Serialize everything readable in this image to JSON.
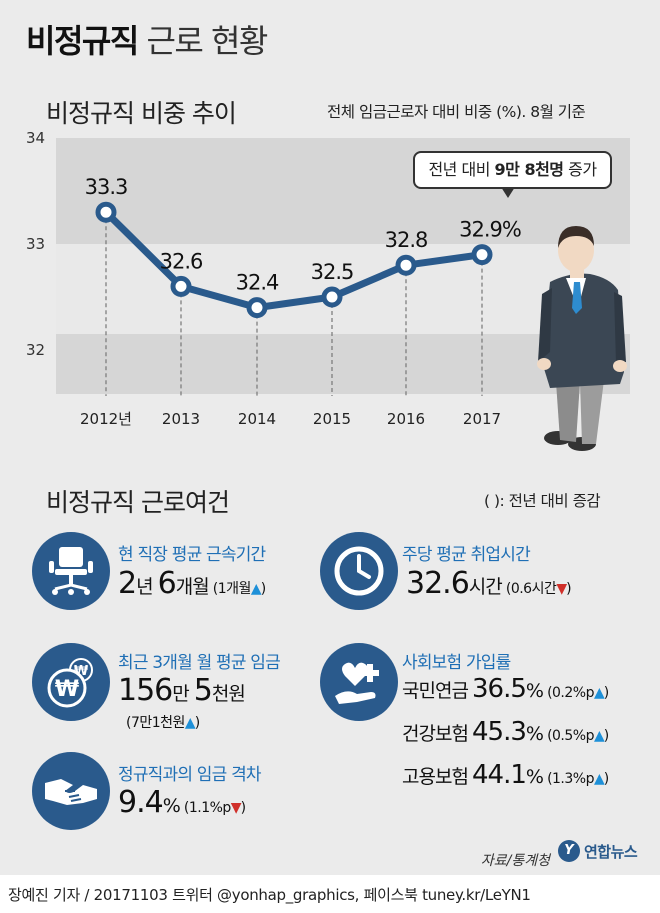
{
  "title": {
    "bold": "비정규직",
    "rest": "근로 현황"
  },
  "trend_section": {
    "title": "비정규직 비중 추이",
    "note": "전체 임금근로자 대비 비중 (%). 8월 기준",
    "callout_pre": "전년 대비 ",
    "callout_b1": "9만 8천명",
    "callout_post": " 증가"
  },
  "chart_data": {
    "type": "line",
    "categories": [
      "2012년",
      "2013",
      "2014",
      "2015",
      "2016",
      "2017"
    ],
    "series": [
      {
        "values": [
          33.3,
          32.6,
          32.4,
          32.5,
          32.8,
          32.9
        ]
      }
    ],
    "data_labels": [
      "33.3",
      "32.6",
      "32.4",
      "32.5",
      "32.8",
      "32.9%"
    ],
    "y_ticks": [
      "34",
      "33",
      "32"
    ],
    "ylim": [
      31.7,
      34.0
    ],
    "grid": false,
    "colors": {
      "line": "#2a5a8c",
      "marker_fill": "#ffffff",
      "band_dark": "#d6d6d6",
      "band_light": "#e9e9e9"
    }
  },
  "conditions_section": {
    "title": "비정규직 근로여건",
    "note": "( ): 전년 대비 증감"
  },
  "stats": {
    "tenure": {
      "label": "현 직장 평균 근속기간",
      "v1": "2",
      "u1": "년 ",
      "v2": "6",
      "u2": "개월",
      "change": "(1개월",
      "dir": "▲"
    },
    "hours": {
      "label": "주당 평균 취업시간",
      "v1": "32.6",
      "u1": "시간",
      "change": "(0.6시간",
      "dir": "▼"
    },
    "wage": {
      "label": "최근 3개월 월 평균 임금",
      "v1": "156",
      "u1": "만 ",
      "v2": "5",
      "u2": "천원",
      "change": "(7만1천원",
      "dir": "▲"
    },
    "insurance": {
      "label": "사회보험 가입률",
      "rows": [
        {
          "name": "국민연금",
          "value": "36.5",
          "unit": "%",
          "change": "(0.2%p",
          "dir": "▲"
        },
        {
          "name": "건강보험",
          "value": "45.3",
          "unit": "%",
          "change": "(0.5%p",
          "dir": "▲"
        },
        {
          "name": "고용보험",
          "value": "44.1",
          "unit": "%",
          "change": "(1.3%p",
          "dir": "▲"
        }
      ]
    },
    "gap": {
      "label": "정규직과의 임금 격차",
      "v1": "9.4",
      "u1": "%",
      "change": "(1.1%p",
      "dir": "▼"
    }
  },
  "icons": {
    "tenure": "office-chair-icon",
    "hours": "clock-icon",
    "wage": "won-coins-icon",
    "insurance": "heart-plus-hand-icon",
    "gap": "handshake-icon"
  },
  "footer": {
    "source": "자료/통계청",
    "logo_mark": "Y",
    "logo_text": "연합뉴스",
    "credit": "장예진 기자 / 20171103 트위터 @yonhap_graphics, 페이스북 tuney.kr/LeYN1"
  }
}
